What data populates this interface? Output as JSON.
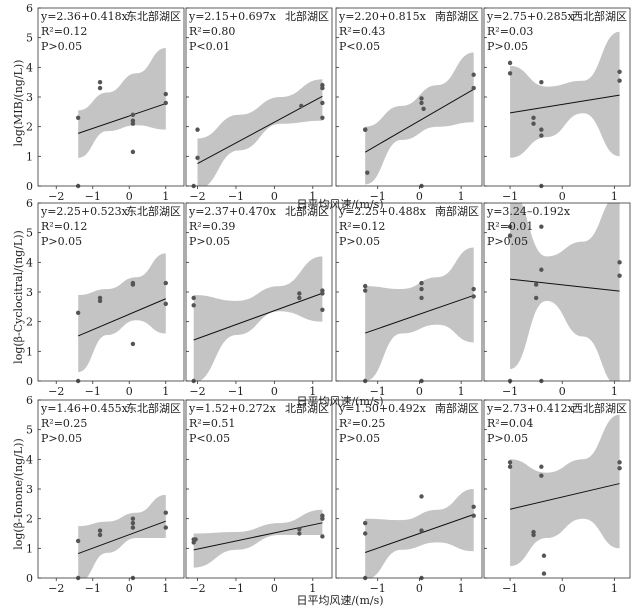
{
  "figure": {
    "xlabel": "日平均风速/(m/s)",
    "rows": [
      {
        "ylabel": "log(MIB/(ng/L))"
      },
      {
        "ylabel": "log(β-Cyclocitral/(ng/L))"
      },
      {
        "ylabel": "log(β-Ionone/(ng/L))"
      }
    ]
  },
  "chart_data": [
    {
      "type": "scatter",
      "row": 0,
      "col": 0,
      "region": "东北部湖区",
      "equation": "y=2.36+0.418x",
      "r2": "R²=0.12",
      "p": "P>0.05",
      "xlim": [
        -2.5,
        1.5
      ],
      "ylim": [
        0,
        6
      ],
      "xticks": [
        -2,
        -1,
        0,
        1
      ],
      "yticks": [
        0,
        1,
        2,
        3,
        4,
        5,
        6
      ],
      "points": [
        [
          -1.4,
          2.3
        ],
        [
          -1.4,
          0.0
        ],
        [
          -0.8,
          3.5
        ],
        [
          -0.8,
          3.3
        ],
        [
          0.1,
          2.4
        ],
        [
          0.1,
          2.2
        ],
        [
          0.1,
          2.1
        ],
        [
          0.1,
          1.15
        ],
        [
          1.0,
          3.1
        ],
        [
          1.0,
          2.8
        ]
      ],
      "fit": {
        "x": [
          -1.4,
          1.0
        ]
      },
      "band": {
        "upper": [
          2.55,
          3.15,
          3.8,
          4.65
        ],
        "lower": [
          0.95,
          1.85,
          2.05,
          1.9
        ]
      }
    },
    {
      "type": "scatter",
      "row": 0,
      "col": 1,
      "region": "北部湖区",
      "equation": "y=2.15+0.697x",
      "r2": "R²=0.80",
      "p": "P<0.01",
      "xlim": [
        -2.3,
        1.5
      ],
      "ylim": [
        0,
        6
      ],
      "xticks": [
        -2,
        -1,
        0,
        1
      ],
      "yticks": [
        0,
        1,
        2,
        3,
        4,
        5,
        6
      ],
      "points": [
        [
          -2.1,
          0.0
        ],
        [
          -2.0,
          0.95
        ],
        [
          -2.0,
          1.9
        ],
        [
          0.7,
          2.7
        ],
        [
          1.25,
          3.4
        ],
        [
          1.25,
          3.3
        ],
        [
          1.25,
          2.8
        ],
        [
          1.25,
          2.3
        ]
      ],
      "fit": {
        "x": [
          -2.0,
          1.25
        ]
      },
      "band": {
        "upper": [
          1.6,
          2.4,
          3.0,
          3.6
        ],
        "lower": [
          -0.1,
          1.2,
          2.1,
          2.2
        ]
      }
    },
    {
      "type": "scatter",
      "row": 0,
      "col": 2,
      "region": "南部湖区",
      "equation": "y=2.20+0.815x",
      "r2": "R²=0.43",
      "p": "P<0.05",
      "xlim": [
        -2.0,
        1.5
      ],
      "ylim": [
        0,
        6
      ],
      "xticks": [
        -1,
        0,
        1
      ],
      "yticks": [
        0,
        1,
        2,
        3,
        4,
        5,
        6
      ],
      "points": [
        [
          -1.3,
          1.9
        ],
        [
          -1.3,
          1.9
        ],
        [
          -1.25,
          0.45
        ],
        [
          0.05,
          2.95
        ],
        [
          0.05,
          2.8
        ],
        [
          0.1,
          2.6
        ],
        [
          0.05,
          0.0
        ],
        [
          1.3,
          3.75
        ],
        [
          1.3,
          3.3
        ]
      ],
      "fit": {
        "x": [
          -1.3,
          1.3
        ]
      },
      "band": {
        "upper": [
          2.0,
          2.7,
          3.4,
          4.5
        ],
        "lower": [
          0.05,
          1.55,
          2.0,
          2.15
        ]
      }
    },
    {
      "type": "scatter",
      "row": 0,
      "col": 3,
      "region": "西北部湖区",
      "equation": "y=2.75+0.285x",
      "r2": "R²=0.03",
      "p": "P>0.05",
      "xlim": [
        -1.5,
        1.3
      ],
      "ylim": [
        0,
        6
      ],
      "xticks": [
        -1,
        0,
        1
      ],
      "yticks": [
        0,
        1,
        2,
        3,
        4,
        5,
        6
      ],
      "points": [
        [
          -1.0,
          4.15
        ],
        [
          -1.0,
          3.8
        ],
        [
          -0.55,
          2.3
        ],
        [
          -0.55,
          2.1
        ],
        [
          -0.4,
          3.5
        ],
        [
          -0.4,
          1.9
        ],
        [
          -0.4,
          1.7
        ],
        [
          -0.4,
          0.0
        ],
        [
          1.1,
          3.85
        ],
        [
          1.1,
          3.55
        ]
      ],
      "fit": {
        "x": [
          -1.0,
          1.1
        ]
      },
      "band": {
        "upper": [
          4.05,
          3.35,
          3.55,
          5.2
        ],
        "lower": [
          0.95,
          1.65,
          2.45,
          1.0
        ]
      }
    },
    {
      "type": "scatter",
      "row": 1,
      "col": 0,
      "region": "东北部湖区",
      "equation": "y=2.25+0.523x",
      "r2": "R²=0.12",
      "p": "P>0.05",
      "xlim": [
        -2.5,
        1.5
      ],
      "ylim": [
        0,
        6
      ],
      "xticks": [
        -2,
        -1,
        0,
        1
      ],
      "yticks": [
        0,
        1,
        2,
        3,
        4,
        5,
        6
      ],
      "points": [
        [
          -1.4,
          2.3
        ],
        [
          -1.4,
          0.0
        ],
        [
          -0.8,
          2.8
        ],
        [
          -0.8,
          2.7
        ],
        [
          0.1,
          3.3
        ],
        [
          0.1,
          3.25
        ],
        [
          0.1,
          1.25
        ],
        [
          1.0,
          3.3
        ],
        [
          1.0,
          2.6
        ]
      ],
      "fit": {
        "x": [
          -1.4,
          1.0
        ]
      },
      "band": {
        "upper": [
          2.9,
          3.1,
          3.5,
          4.3
        ],
        "lower": [
          0.3,
          1.55,
          2.05,
          1.6
        ]
      }
    },
    {
      "type": "scatter",
      "row": 1,
      "col": 1,
      "region": "北部湖区",
      "equation": "y=2.37+0.470x",
      "r2": "R²=0.39",
      "p": "P>0.05",
      "xlim": [
        -2.3,
        1.5
      ],
      "ylim": [
        0,
        6
      ],
      "xticks": [
        -2,
        -1,
        0,
        1
      ],
      "yticks": [
        0,
        1,
        2,
        3,
        4,
        5,
        6
      ],
      "points": [
        [
          -2.1,
          2.8
        ],
        [
          -2.1,
          2.55
        ],
        [
          -2.1,
          0.0
        ],
        [
          0.65,
          2.95
        ],
        [
          0.65,
          2.8
        ],
        [
          1.25,
          3.05
        ],
        [
          1.25,
          2.95
        ],
        [
          1.25,
          2.4
        ]
      ],
      "fit": {
        "x": [
          -2.1,
          1.25
        ]
      },
      "band": {
        "upper": [
          2.9,
          2.7,
          3.2,
          4.2
        ],
        "lower": [
          -0.05,
          1.55,
          2.35,
          2.0
        ]
      }
    },
    {
      "type": "scatter",
      "row": 1,
      "col": 2,
      "region": "南部湖区",
      "equation": "y=2.25+0.488x",
      "r2": "R²=0.12",
      "p": "P>0.05",
      "xlim": [
        -2.0,
        1.5
      ],
      "ylim": [
        0,
        6
      ],
      "xticks": [
        -1,
        0,
        1
      ],
      "yticks": [
        0,
        1,
        2,
        3,
        4,
        5,
        6
      ],
      "points": [
        [
          -1.3,
          3.2
        ],
        [
          -1.3,
          3.05
        ],
        [
          -1.3,
          0.0
        ],
        [
          0.05,
          3.3
        ],
        [
          0.05,
          3.1
        ],
        [
          0.05,
          2.8
        ],
        [
          0.05,
          0.0
        ],
        [
          1.3,
          3.1
        ],
        [
          1.3,
          2.85
        ]
      ],
      "fit": {
        "x": [
          -1.3,
          1.3
        ]
      },
      "band": {
        "upper": [
          3.2,
          3.1,
          3.5,
          4.5
        ],
        "lower": [
          0.0,
          1.6,
          1.9,
          1.3
        ]
      }
    },
    {
      "type": "scatter",
      "row": 1,
      "col": 3,
      "region": "",
      "equation": "y=3.24–0.192x",
      "r2": "R²=0.01",
      "p": "P>0.05",
      "xlim": [
        -1.5,
        1.3
      ],
      "ylim": [
        0,
        6
      ],
      "xticks": [
        -1,
        0,
        1
      ],
      "yticks": [
        0,
        1,
        2,
        3,
        4,
        5,
        6
      ],
      "points": [
        [
          -1.0,
          5.2
        ],
        [
          -1.0,
          4.9
        ],
        [
          -0.5,
          3.25
        ],
        [
          -0.5,
          2.8
        ],
        [
          -0.4,
          5.2
        ],
        [
          -0.4,
          3.75
        ],
        [
          -0.4,
          0.0
        ],
        [
          -1.0,
          0.0
        ],
        [
          1.1,
          4.0
        ],
        [
          1.1,
          3.55
        ]
      ],
      "fit": {
        "x": [
          -1.0,
          1.1
        ]
      },
      "band": {
        "upper": [
          6.4,
          4.2,
          4.7,
          6.3
        ],
        "lower": [
          0.4,
          2.7,
          1.5,
          -0.2
        ]
      }
    },
    {
      "type": "scatter",
      "row": 2,
      "col": 0,
      "region": "东北部湖区",
      "equation": "y=1.46+0.455x",
      "r2": "R²=0.25",
      "p": "P>0.05",
      "xlim": [
        -2.5,
        1.5
      ],
      "ylim": [
        0,
        6
      ],
      "xticks": [
        -2,
        -1,
        0,
        1
      ],
      "yticks": [
        0,
        1,
        2,
        3,
        4,
        5,
        6
      ],
      "points": [
        [
          -1.4,
          1.25
        ],
        [
          -1.4,
          0.0
        ],
        [
          -0.8,
          1.6
        ],
        [
          -0.8,
          1.45
        ],
        [
          0.1,
          2.0
        ],
        [
          0.1,
          1.85
        ],
        [
          0.1,
          1.7
        ],
        [
          0.1,
          0.0
        ],
        [
          1.0,
          2.2
        ],
        [
          1.0,
          1.7
        ]
      ],
      "fit": {
        "x": [
          -1.4,
          1.0
        ]
      },
      "band": {
        "upper": [
          1.75,
          1.9,
          2.2,
          2.8
        ],
        "lower": [
          -0.15,
          0.85,
          1.35,
          1.35
        ]
      }
    },
    {
      "type": "scatter",
      "row": 2,
      "col": 1,
      "region": "北部湖区",
      "equation": "y=1.52+0.272x",
      "r2": "R²=0.51",
      "p": "P<0.05",
      "xlim": [
        -2.3,
        1.5
      ],
      "ylim": [
        0,
        6
      ],
      "xticks": [
        -2,
        -1,
        0,
        1
      ],
      "yticks": [
        0,
        1,
        2,
        3,
        4,
        5,
        6
      ],
      "points": [
        [
          -2.1,
          1.3
        ],
        [
          -2.1,
          1.2
        ],
        [
          -2.05,
          1.3
        ],
        [
          0.65,
          1.65
        ],
        [
          0.65,
          1.5
        ],
        [
          1.25,
          2.1
        ],
        [
          1.25,
          2.0
        ],
        [
          1.25,
          1.4
        ]
      ],
      "fit": {
        "x": [
          -2.1,
          1.25
        ]
      },
      "band": {
        "upper": [
          1.5,
          1.55,
          1.85,
          2.3
        ],
        "lower": [
          0.35,
          0.95,
          1.45,
          1.45
        ]
      }
    },
    {
      "type": "scatter",
      "row": 2,
      "col": 2,
      "region": "南部湖区",
      "equation": "y=1.50+0.492x",
      "r2": "R²=0.25",
      "p": "P>0.05",
      "xlim": [
        -2.0,
        1.5
      ],
      "ylim": [
        0,
        6
      ],
      "xticks": [
        -1,
        0,
        1
      ],
      "yticks": [
        0,
        1,
        2,
        3,
        4,
        5,
        6
      ],
      "points": [
        [
          -1.3,
          1.85
        ],
        [
          -1.3,
          1.5
        ],
        [
          -1.3,
          0.0
        ],
        [
          0.05,
          2.75
        ],
        [
          0.05,
          1.6
        ],
        [
          0.05,
          0.0
        ],
        [
          1.3,
          2.4
        ],
        [
          1.3,
          2.1
        ]
      ],
      "fit": {
        "x": [
          -1.3,
          1.3
        ]
      },
      "band": {
        "upper": [
          2.0,
          1.95,
          2.3,
          3.0
        ],
        "lower": [
          -0.05,
          0.95,
          1.2,
          0.9
        ]
      }
    },
    {
      "type": "scatter",
      "row": 2,
      "col": 3,
      "region": "西北部湖区",
      "equation": "y=2.73+0.412x",
      "r2": "R²=0.04",
      "p": "P>0.05",
      "xlim": [
        -1.5,
        1.3
      ],
      "ylim": [
        0,
        6
      ],
      "xticks": [
        -1,
        0,
        1
      ],
      "yticks": [
        0,
        1,
        2,
        3,
        4,
        5,
        6
      ],
      "points": [
        [
          -1.0,
          3.9
        ],
        [
          -1.0,
          3.75
        ],
        [
          -0.55,
          1.55
        ],
        [
          -0.55,
          1.45
        ],
        [
          -0.4,
          3.75
        ],
        [
          -0.4,
          3.45
        ],
        [
          -0.35,
          0.75
        ],
        [
          -0.35,
          0.15
        ],
        [
          1.1,
          3.9
        ],
        [
          1.1,
          3.7
        ]
      ],
      "fit": {
        "x": [
          -1.0,
          1.1
        ]
      },
      "band": {
        "upper": [
          4.0,
          3.55,
          4.0,
          5.5
        ],
        "lower": [
          0.4,
          1.35,
          2.0,
          1.0
        ]
      }
    }
  ]
}
